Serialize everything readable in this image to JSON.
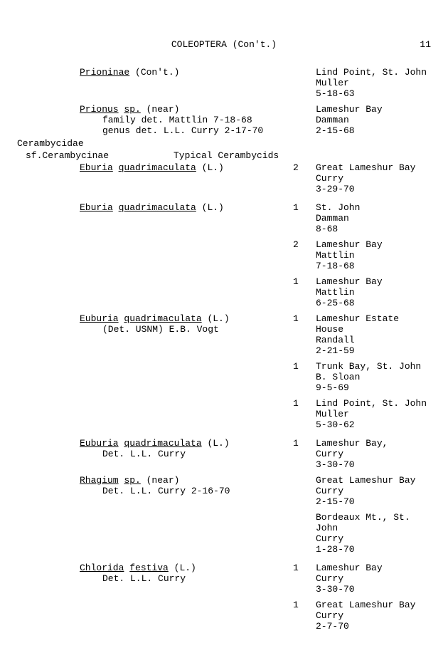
{
  "page_number": "11",
  "title": "COLEOPTERA (Con't.)",
  "family": "Cerambycidae",
  "subfamily": "sf.Cerambycinae",
  "subfamily_desc": "Typical Cerambycids",
  "entries": [
    {
      "species_u": "Prioninae",
      "species_tail": " (Con't.)",
      "notes": [],
      "count": "",
      "loc": "Lind Point, St. John",
      "coll": "Muller",
      "date": "5-18-63"
    },
    {
      "species_u": "Prionus",
      "species_mid_u": "sp.",
      "species_tail": " (near)",
      "notes": [
        "family det. Mattlin 7-18-68",
        "genus det. L.L. Curry 2-17-70"
      ],
      "count": "",
      "loc": "Lameshur Bay",
      "coll": "Damman",
      "date": "2-15-68"
    },
    {
      "species_u": "Eburia",
      "species_mid_u": "quadrimaculata",
      "species_tail": " (L.)",
      "notes": [],
      "count": "2",
      "loc": "Great Lameshur Bay",
      "coll": "Curry",
      "date": "3-29-70"
    },
    {
      "species_u": "Eburia",
      "species_mid_u": "quadrimaculata",
      "species_tail": " (L.)",
      "notes": [],
      "count": "1",
      "loc": "St. John",
      "coll": "Damman",
      "date": "8-68"
    },
    {
      "species_u": "",
      "species_tail": "",
      "notes": [],
      "count": "2",
      "loc": "Lameshur Bay",
      "coll": "Mattlin",
      "date": "7-18-68"
    },
    {
      "species_u": "",
      "species_tail": "",
      "notes": [],
      "count": "1",
      "loc": "Lameshur Bay",
      "coll": "Mattlin",
      "date": "6-25-68"
    },
    {
      "species_u": "Euburia",
      "species_mid_u": "quadrimaculata",
      "species_tail": " (L.)",
      "notes": [
        "(Det. USNM) E.B. Vogt"
      ],
      "count": "1",
      "loc": "Lameshur Estate House",
      "coll": "Randall",
      "date": "2-21-59"
    },
    {
      "species_u": "",
      "species_tail": "",
      "notes": [],
      "count": "1",
      "loc": "Trunk Bay, St. John",
      "coll": "B. Sloan",
      "date": "9-5-69"
    },
    {
      "species_u": "",
      "species_tail": "",
      "notes": [],
      "count": "1",
      "loc": "Lind Point, St. John",
      "coll": "Muller",
      "date": "5-30-62"
    },
    {
      "species_u": "Euburia",
      "species_mid_u": "quadrimaculata",
      "species_tail": " (L.)",
      "notes": [
        "Det. L.L. Curry"
      ],
      "count": "1",
      "loc": "Lameshur Bay,",
      "coll": "Curry",
      "date": "3-30-70"
    },
    {
      "species_u": "Rhagium",
      "species_mid_u": "sp.",
      "species_tail": " (near)",
      "notes": [
        "Det. L.L. Curry 2-16-70"
      ],
      "count": "",
      "loc": "Great Lameshur Bay",
      "coll": "Curry",
      "date": "2-15-70"
    },
    {
      "species_u": "",
      "species_tail": "",
      "notes": [],
      "count": "",
      "loc": "Bordeaux Mt., St. John",
      "coll": "Curry",
      "date": "1-28-70"
    },
    {
      "species_u": "Chlorida",
      "species_mid_u": "festiva",
      "species_tail": " (L.)",
      "notes": [
        "Det. L.L. Curry"
      ],
      "count": "1",
      "loc": "Lameshur Bay",
      "coll": "Curry",
      "date": "3-30-70"
    },
    {
      "species_u": "",
      "species_tail": "",
      "notes": [],
      "count": "1",
      "loc": "Great Lameshur Bay",
      "coll": "Curry",
      "date": "2-7-70"
    }
  ]
}
